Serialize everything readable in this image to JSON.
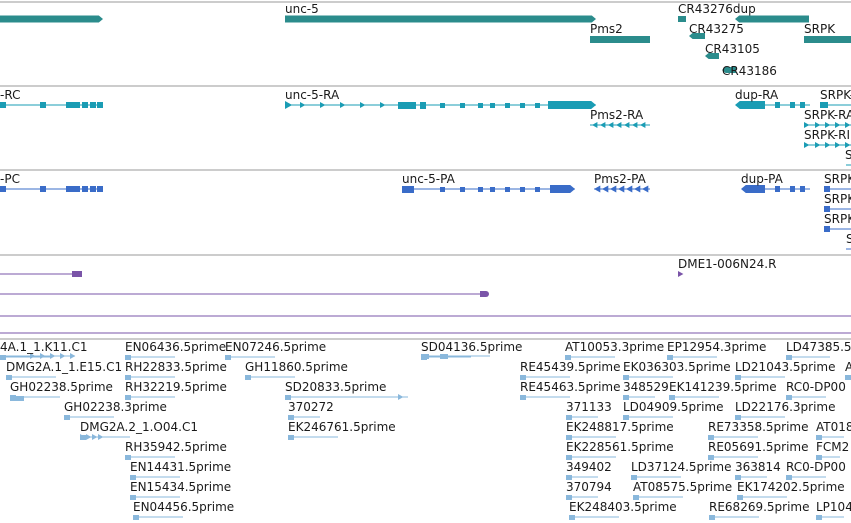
{
  "colors": {
    "gene": "#2b8c8c",
    "transcript": "#1a9cb4",
    "cds": "#3a6cc8",
    "contig": "#7a54a8",
    "est": "#8ab8dc",
    "separator": "#9a9a9a",
    "text": "#1a1a1a"
  },
  "genes": [
    {
      "label": "",
      "bar": true
    },
    {
      "label": "unc-5",
      "bar": true
    },
    {
      "label": "Pms2",
      "bar": true
    },
    {
      "label": "CR43276",
      "bar": false
    },
    {
      "label": "dup",
      "bar": true
    },
    {
      "label": "CR43275",
      "bar": true
    },
    {
      "label": "CR43105",
      "bar": true
    },
    {
      "label": "CR43186",
      "bar": true
    },
    {
      "label": "SRPK",
      "bar": true
    }
  ],
  "transcripts": [
    {
      "label": "-RC"
    },
    {
      "label": "unc-5-RA"
    },
    {
      "label": "Pms2-RA"
    },
    {
      "label": "dup-RA"
    },
    {
      "label": "SRPK-"
    },
    {
      "label": "SRPK-RA"
    },
    {
      "label": "SRPK-RI"
    }
  ],
  "cds": [
    {
      "label": "-PC"
    },
    {
      "label": "unc-5-PA"
    },
    {
      "label": "Pms2-PA"
    },
    {
      "label": "dup-PA"
    },
    {
      "label": "SRPK"
    },
    {
      "label": "SRPK"
    },
    {
      "label": "SRPK"
    }
  ],
  "contigs": [
    {
      "label": "DME1-006N24.R"
    }
  ],
  "ests": [
    {
      "label": "4A.1_1.K11.C1"
    },
    {
      "label": "EN06436.5prime"
    },
    {
      "label": "EN07246.5prime"
    },
    {
      "label": "SD04136.5prime"
    },
    {
      "label": "AT10053.3prime"
    },
    {
      "label": "EP12954.3prime"
    },
    {
      "label": "LD47385.5"
    },
    {
      "label": "DMG2A.1_1.E15.C1"
    },
    {
      "label": "RH22833.5prime"
    },
    {
      "label": "GH11860.5prime"
    },
    {
      "label": "RE45439.5prime"
    },
    {
      "label": "EK036303.5prime"
    },
    {
      "label": "LD21043.5prime"
    },
    {
      "label": "A"
    },
    {
      "label": "GH02238.5prime"
    },
    {
      "label": "RH32219.5prime"
    },
    {
      "label": "SD20833.5prime"
    },
    {
      "label": "RE45463.5prime"
    },
    {
      "label": "348529"
    },
    {
      "label": "EK141239.5prime"
    },
    {
      "label": "RC0-DP00"
    },
    {
      "label": "GH02238.3prime"
    },
    {
      "label": "370272"
    },
    {
      "label": "371133"
    },
    {
      "label": "LD04909.5prime"
    },
    {
      "label": "LD22176.3prime"
    },
    {
      "label": "DMG2A.2_1.O04.C1"
    },
    {
      "label": "EK246761.5prime"
    },
    {
      "label": "EK248817.5prime"
    },
    {
      "label": "RE73358.5prime"
    },
    {
      "label": "AT018"
    },
    {
      "label": "RH35942.5prime"
    },
    {
      "label": "EK228561.5prime"
    },
    {
      "label": "RE05691.5prime"
    },
    {
      "label": "FCM2"
    },
    {
      "label": "EN14431.5prime"
    },
    {
      "label": "349402"
    },
    {
      "label": "LD37124.5prime"
    },
    {
      "label": "363814"
    },
    {
      "label": "RC0-DP00"
    },
    {
      "label": "EN15434.5prime"
    },
    {
      "label": "370794"
    },
    {
      "label": "AT08575.5prime"
    },
    {
      "label": "EK174202.5prime"
    },
    {
      "label": "EN04456.5prime"
    },
    {
      "label": "EK248403.5prime"
    },
    {
      "label": "RE68269.5prime"
    },
    {
      "label": "LP104"
    }
  ]
}
